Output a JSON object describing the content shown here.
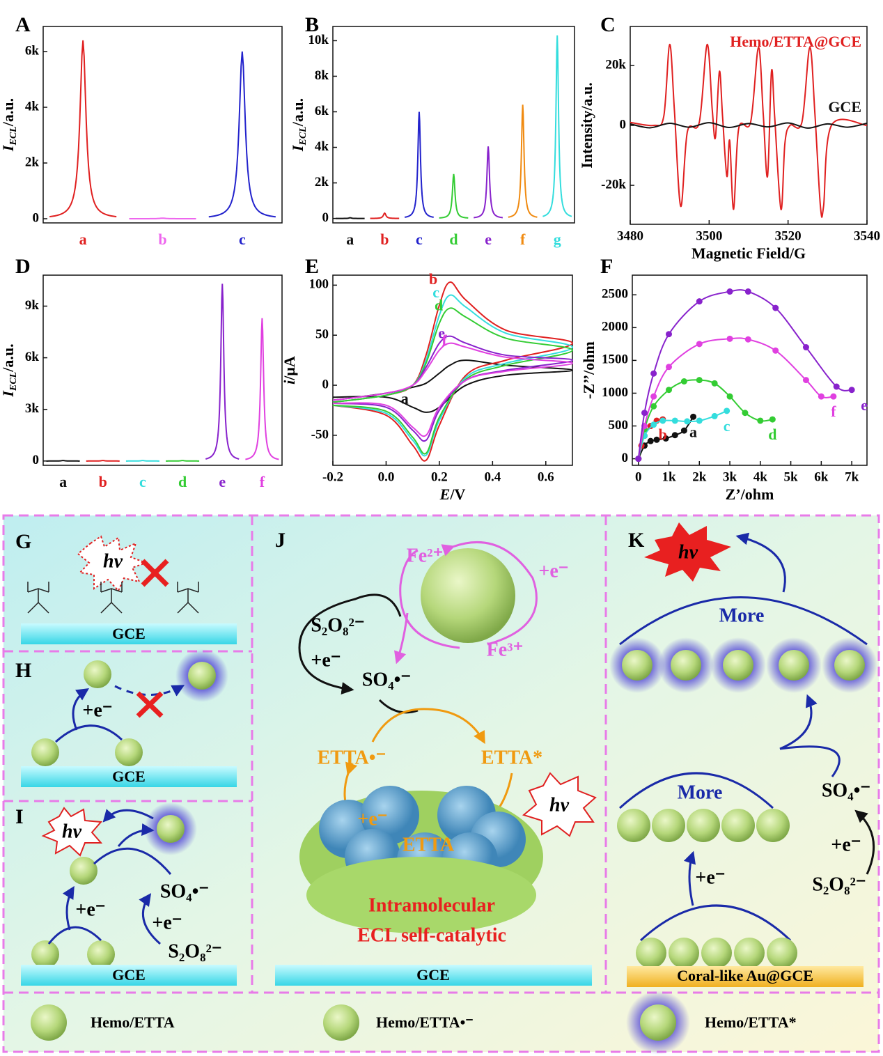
{
  "chart_data": [
    {
      "type": "peak",
      "panel": "A",
      "categories": [
        "a",
        "b",
        "c"
      ],
      "values": [
        6400,
        20,
        6000
      ],
      "colors": [
        "#e02020",
        "#ee66ee",
        "#2222cc"
      ],
      "ylim": [
        -150,
        6900
      ],
      "yticks": [
        0,
        {
          "value": 2000,
          "label": "2k"
        },
        {
          "value": 4000,
          "label": "4k"
        },
        {
          "value": 6000,
          "label": "6k"
        }
      ],
      "y_label": {
        "text": "I",
        "sub": "ECL",
        "unit": "/a.u."
      }
    },
    {
      "type": "peak",
      "panel": "B",
      "categories": [
        "a",
        "b",
        "c",
        "d",
        "e",
        "f",
        "g"
      ],
      "values": [
        40,
        300,
        6000,
        2500,
        4050,
        6400,
        10300
      ],
      "colors": [
        "#111111",
        "#e02020",
        "#2222cc",
        "#33cc33",
        "#8822cc",
        "#f08a10",
        "#33dddd"
      ],
      "ylim": [
        -250,
        10800
      ],
      "yticks": [
        0,
        {
          "value": 2000,
          "label": "2k"
        },
        {
          "value": 4000,
          "label": "4k"
        },
        {
          "value": 6000,
          "label": "6k"
        },
        {
          "value": 8000,
          "label": "8k"
        },
        {
          "value": 10000,
          "label": "10k"
        }
      ],
      "y_label": {
        "text": "I",
        "sub": "ECL",
        "unit": "/a.u."
      }
    },
    {
      "type": "line",
      "panel": "C",
      "x_label": "Magnetic Field/G",
      "y_label": "Intensity/a.u.",
      "legend": "top-right",
      "xlim": [
        3480,
        3540
      ],
      "xticks": [
        3480,
        3500,
        3520,
        3540
      ],
      "ylim": [
        -33000,
        33000
      ],
      "yticks": [
        {
          "value": -20000,
          "label": "-20k"
        },
        0,
        {
          "value": 20000,
          "label": "20k"
        }
      ],
      "series": [
        {
          "name": "Hemo/ETTA@GCE",
          "color": "#e02020",
          "x": [
            3480,
            3486,
            3488.5,
            3490,
            3491.2,
            3492.8,
            3494.5,
            3497.5,
            3499.5,
            3500.8,
            3501.6,
            3502.6,
            3503.4,
            3504.5,
            3505.2,
            3506.2,
            3507.5,
            3510.5,
            3512.5,
            3513.7,
            3514.8,
            3515.8,
            3516.6,
            3518.2,
            3519.2,
            3520.5,
            3523.5,
            3525.5,
            3526.8,
            3528.2,
            3529,
            3531,
            3540
          ],
          "values": [
            1000,
            0,
            3000,
            27000,
            5000,
            -27000,
            -2000,
            1000,
            27000,
            5000,
            -4000,
            18000,
            3000,
            -17000,
            -5000,
            -28000,
            -1000,
            1000,
            26000,
            4000,
            -17000,
            18000,
            3000,
            -28000,
            -6000,
            0,
            1000,
            26000,
            4000,
            -27000,
            -27000,
            0,
            0
          ]
        },
        {
          "name": "GCE",
          "color": "#111111",
          "x": [
            3480,
            3485,
            3490,
            3495,
            3500,
            3505,
            3510,
            3515,
            3520,
            3525,
            3530,
            3535,
            3540
          ],
          "values": [
            500,
            -800,
            700,
            -600,
            900,
            -700,
            600,
            -500,
            800,
            -900,
            500,
            -600,
            700
          ]
        }
      ]
    },
    {
      "type": "peak",
      "panel": "D",
      "categories": [
        "a",
        "b",
        "c",
        "d",
        "e",
        "f"
      ],
      "values": [
        30,
        30,
        30,
        30,
        10300,
        8300
      ],
      "colors": [
        "#111111",
        "#e02020",
        "#33dddd",
        "#33cc33",
        "#8822cc",
        "#e040e0"
      ],
      "ylim": [
        -250,
        10800
      ],
      "yticks": [
        0,
        {
          "value": 3000,
          "label": "3k"
        },
        {
          "value": 6000,
          "label": "6k"
        },
        {
          "value": 9000,
          "label": "9k"
        }
      ],
      "y_label": {
        "text": "I",
        "sub": "ECL",
        "unit": "/a.u."
      }
    },
    {
      "type": "line",
      "panel": "E",
      "x_label": {
        "text": "E",
        "unit": "/V"
      },
      "y_label": {
        "text": "i",
        "unit": "/μA"
      },
      "legend": "inline",
      "xlim": [
        -0.2,
        0.7
      ],
      "xticks": [
        -0.2,
        {
          "value": 0,
          "label": "0.0"
        },
        0.2,
        0.4,
        0.6
      ],
      "ylim": [
        -80,
        110
      ],
      "yticks": [
        -50,
        0,
        50,
        100
      ],
      "series": [
        {
          "name": "a",
          "color": "#111111",
          "x": [
            -0.2,
            0,
            0.1,
            0.15,
            0.2,
            0.24,
            0.3,
            0.45,
            0.7,
            0.45,
            0.3,
            0.2,
            0.15,
            0.1,
            0,
            -0.2
          ],
          "values": [
            -15,
            -8,
            -2,
            2,
            12,
            20,
            25,
            20,
            15,
            10,
            0,
            -22,
            -27,
            -22,
            -12,
            -12
          ]
        },
        {
          "name": "b",
          "color": "#e02020",
          "x": [
            -0.2,
            0,
            0.1,
            0.15,
            0.2,
            0.24,
            0.3,
            0.45,
            0.7,
            0.45,
            0.3,
            0.2,
            0.15,
            0.1,
            0,
            -0.2
          ],
          "values": [
            -17,
            -10,
            0,
            30,
            80,
            103,
            85,
            55,
            42,
            25,
            10,
            -40,
            -75,
            -60,
            -30,
            -20
          ]
        },
        {
          "name": "c",
          "color": "#33dddd",
          "x": [
            -0.2,
            0,
            0.1,
            0.15,
            0.2,
            0.24,
            0.3,
            0.45,
            0.7,
            0.45,
            0.3,
            0.2,
            0.15,
            0.1,
            0,
            -0.2
          ],
          "values": [
            -17,
            -10,
            0,
            25,
            70,
            90,
            78,
            52,
            38,
            22,
            8,
            -35,
            -70,
            -55,
            -28,
            -20
          ]
        },
        {
          "name": "d",
          "color": "#33cc33",
          "x": [
            -0.2,
            0,
            0.1,
            0.15,
            0.2,
            0.24,
            0.3,
            0.45,
            0.7,
            0.45,
            0.3,
            0.2,
            0.15,
            0.1,
            0,
            -0.2
          ],
          "values": [
            -17,
            -10,
            0,
            22,
            62,
            77,
            68,
            47,
            35,
            20,
            6,
            -32,
            -68,
            -52,
            -26,
            -20
          ]
        },
        {
          "name": "e",
          "color": "#8822cc",
          "x": [
            -0.2,
            0,
            0.1,
            0.15,
            0.2,
            0.24,
            0.3,
            0.45,
            0.7,
            0.45,
            0.3,
            0.2,
            0.15,
            0.1,
            0,
            -0.2
          ],
          "values": [
            -15,
            -8,
            0,
            18,
            42,
            49,
            42,
            30,
            25,
            15,
            5,
            -25,
            -55,
            -45,
            -22,
            -18
          ]
        },
        {
          "name": "f",
          "color": "#e040e0",
          "x": [
            -0.2,
            0,
            0.1,
            0.15,
            0.2,
            0.24,
            0.3,
            0.45,
            0.7,
            0.45,
            0.3,
            0.2,
            0.15,
            0.1,
            0,
            -0.2
          ],
          "values": [
            -15,
            -8,
            0,
            15,
            35,
            42,
            38,
            28,
            22,
            14,
            5,
            -22,
            -50,
            -42,
            -20,
            -18
          ]
        }
      ]
    },
    {
      "type": "line",
      "panel": "F",
      "x_label": "Z’/ohm",
      "y_label": "-Z’’/ohm",
      "legend": "end",
      "markers": true,
      "xlim": [
        -200,
        7500
      ],
      "xticks": [
        0,
        {
          "value": 1000,
          "label": "1k"
        },
        {
          "value": 2000,
          "label": "2k"
        },
        {
          "value": 3000,
          "label": "3k"
        },
        {
          "value": 4000,
          "label": "4k"
        },
        {
          "value": 5000,
          "label": "5k"
        },
        {
          "value": 6000,
          "label": "6k"
        },
        {
          "value": 7000,
          "label": "7k"
        }
      ],
      "ylim": [
        -100,
        2800
      ],
      "yticks": [
        0,
        500,
        1000,
        1500,
        2000,
        2500
      ],
      "series": [
        {
          "name": "a",
          "color": "#111111",
          "x": [
            0,
            200,
            400,
            600,
            900,
            1200,
            1500,
            1800
          ],
          "values": [
            0,
            200,
            270,
            290,
            310,
            360,
            430,
            640
          ]
        },
        {
          "name": "b",
          "color": "#e02020",
          "x": [
            0,
            100,
            200,
            400,
            600,
            800
          ],
          "values": [
            0,
            200,
            350,
            500,
            580,
            600
          ]
        },
        {
          "name": "c",
          "color": "#33dddd",
          "x": [
            0,
            200,
            500,
            800,
            1200,
            1600,
            2000,
            2500,
            2900
          ],
          "values": [
            0,
            350,
            520,
            580,
            580,
            570,
            580,
            650,
            730
          ]
        },
        {
          "name": "d",
          "color": "#33cc33",
          "x": [
            0,
            200,
            500,
            1000,
            1500,
            2000,
            2500,
            3000,
            3500,
            4000,
            4400
          ],
          "values": [
            0,
            450,
            800,
            1050,
            1180,
            1200,
            1150,
            950,
            700,
            580,
            600
          ]
        },
        {
          "name": "f",
          "color": "#e040e0",
          "x": [
            0,
            200,
            500,
            1000,
            2000,
            3000,
            3600,
            4500,
            5500,
            6000,
            6400
          ],
          "values": [
            0,
            500,
            950,
            1400,
            1750,
            1830,
            1820,
            1650,
            1200,
            950,
            950
          ]
        },
        {
          "name": "e",
          "color": "#8822cc",
          "x": [
            0,
            200,
            500,
            1000,
            2000,
            3000,
            3600,
            4500,
            5500,
            6500,
            7000
          ],
          "values": [
            0,
            700,
            1300,
            1900,
            2400,
            2550,
            2550,
            2300,
            1700,
            1100,
            1050
          ]
        }
      ]
    }
  ],
  "schematic": {
    "G": {
      "label": "G",
      "hv": "hν",
      "electrode": "GCE"
    },
    "H": {
      "label": "H",
      "e": "+e⁻",
      "electrode": "GCE"
    },
    "I": {
      "label": "I",
      "hv": "hν",
      "e1": "+e⁻",
      "so4": "SO₄•⁻",
      "e2": "+e⁻",
      "s2o8": "S₂O₈²⁻",
      "electrode": "GCE"
    },
    "J": {
      "label": "J",
      "fe2": "Fe²⁺",
      "e1": "+e⁻",
      "fe3": "Fe³⁺",
      "s2o8": "S₂O₈²⁻",
      "e2": "+e⁻",
      "so4": "SO₄•⁻",
      "etta_rad": "ETTA•⁻",
      "etta_star": "ETTA*",
      "hv": "hν",
      "e3": "+e⁻",
      "etta": "ETTA",
      "caption1": "Intramolecular",
      "caption2": "ECL self-catalytic",
      "electrode": "GCE"
    },
    "K": {
      "label": "K",
      "hv": "hν",
      "more1": "More",
      "more2": "More",
      "so4": "SO₄•⁻",
      "e1": "+e⁻",
      "s2o8": "S₂O₈²⁻",
      "e2": "+e⁻",
      "electrode": "Coral-like Au@GCE"
    },
    "legend": [
      "Hemo/ETTA",
      "Hemo/ETTA•⁻",
      "Hemo/ETTA*"
    ]
  }
}
